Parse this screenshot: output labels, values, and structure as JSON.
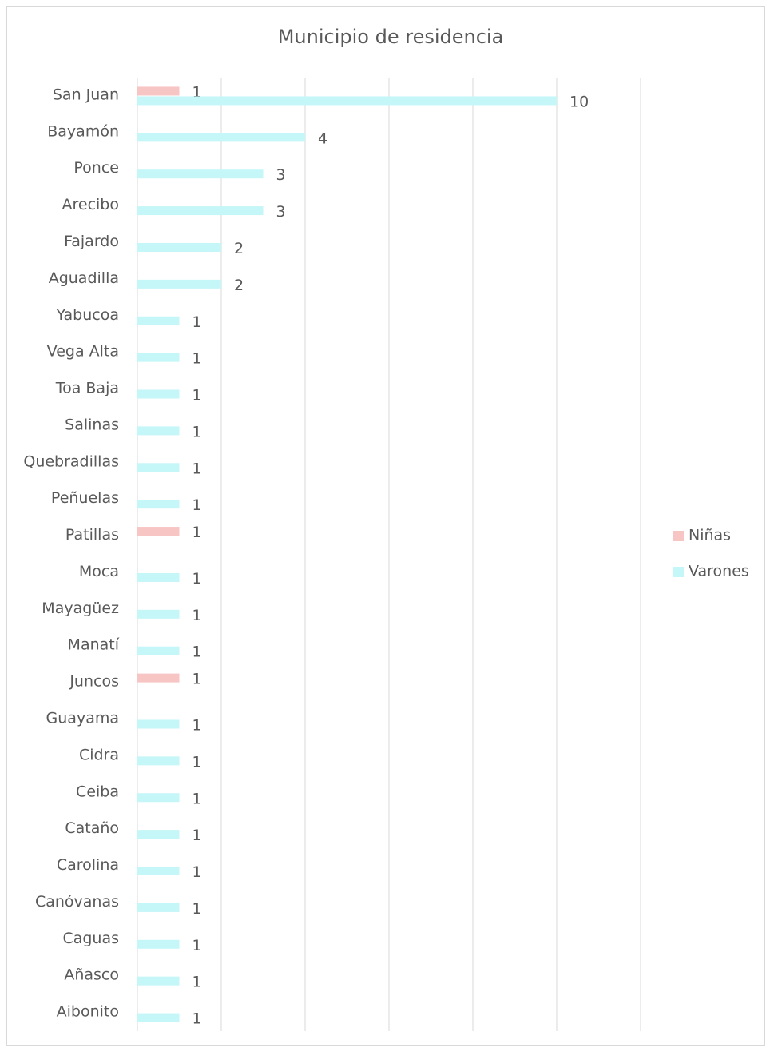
{
  "chart_data": {
    "type": "bar",
    "orientation": "horizontal",
    "title": "Municipio de residencia",
    "categories": [
      "San Juan",
      "Bayamón",
      "Ponce",
      "Arecibo",
      "Fajardo",
      "Aguadilla",
      "Yabucoa",
      "Vega Alta",
      "Toa Baja",
      "Salinas",
      "Quebradillas",
      "Peñuelas",
      "Patillas",
      "Moca",
      "Mayagüez",
      "Manatí",
      "Juncos",
      "Guayama",
      "Cidra",
      "Ceiba",
      "Cataño",
      "Carolina",
      "Canóvanas",
      "Caguas",
      "Añasco",
      "Aibonito"
    ],
    "series": [
      {
        "name": "Niñas",
        "color": "#f8c5c5",
        "values": [
          1,
          null,
          null,
          null,
          null,
          null,
          null,
          null,
          null,
          null,
          null,
          null,
          1,
          null,
          null,
          null,
          1,
          null,
          null,
          null,
          null,
          null,
          null,
          null,
          null,
          null
        ]
      },
      {
        "name": "Varones",
        "color": "#c5f6f8",
        "values": [
          10,
          4,
          3,
          3,
          2,
          2,
          1,
          1,
          1,
          1,
          1,
          1,
          null,
          1,
          1,
          1,
          null,
          1,
          1,
          1,
          1,
          1,
          1,
          1,
          1,
          1
        ]
      }
    ],
    "xlim": [
      0,
      12
    ],
    "xticks": [
      0,
      2,
      4,
      6,
      8,
      10,
      12
    ],
    "grid": true,
    "legend": "right"
  }
}
